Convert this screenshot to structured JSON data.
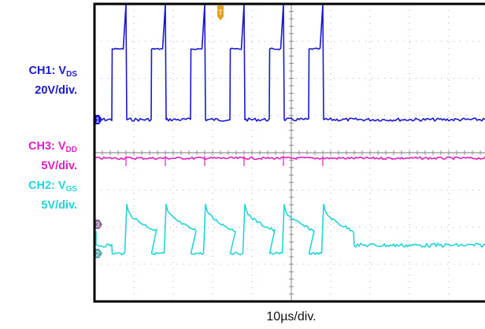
{
  "channels": {
    "ch1": {
      "name": "CH1: V",
      "sub": "DS",
      "scale": "20V/div.",
      "color": "#1a1acc"
    },
    "ch3": {
      "name": "CH3: V",
      "sub": "DD",
      "scale": "5V/div.",
      "color": "#e020c0"
    },
    "ch2": {
      "name": "CH2: V",
      "sub": "GS",
      "scale": "5V/div.",
      "color": "#22d4d8"
    }
  },
  "timebase": "10µs/div.",
  "chart_data": {
    "type": "line",
    "title": "",
    "xlabel": "10µs/div.",
    "ylabel": "",
    "grid": true,
    "divisions": {
      "x": 10,
      "y": 8
    },
    "time_per_div_us": 10,
    "trigger_time_us": 32,
    "series": [
      {
        "name": "CH1: VDS",
        "channel": 1,
        "scale_v_per_div": 20,
        "color": "#1a1acc",
        "waveform": "square pulse train with overshoot spike at turn-off",
        "period_us": 10,
        "high_duration_us": 3.5,
        "low_v": 0,
        "high_v": 38,
        "overshoot_v": 62,
        "edges_us": [
          4.5,
          14.5,
          24.5,
          34.5,
          44.5,
          54.5
        ]
      },
      {
        "name": "CH3: VDD",
        "channel": 3,
        "scale_v_per_div": 5,
        "color": "#e020c0",
        "waveform": "flat DC with small ripple",
        "value_v": 0
      },
      {
        "name": "CH2: VGS",
        "channel": 2,
        "scale_v_per_div": 5,
        "color": "#22d4d8",
        "waveform": "gate drive with spike then decay, low while VDS high",
        "low_v": 0,
        "plateau_v": 5,
        "peak_v": 11
      }
    ]
  }
}
